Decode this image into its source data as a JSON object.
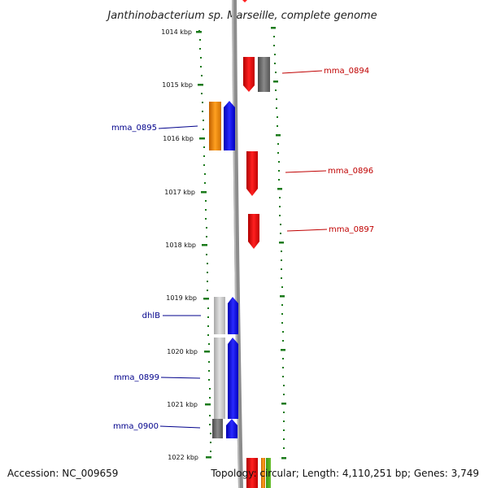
{
  "title": "Janthinobacterium sp. Marseille, complete genome",
  "footer": {
    "accession": "Accession: NC_009659",
    "topology": "Topology: circular; Length: 4,110,251 bp; Genes: 3,749"
  },
  "scale": {
    "unit": "kbp",
    "ticks": [
      "1014 kbp",
      "1015 kbp",
      "1016 kbp",
      "1017 kbp",
      "1018 kbp",
      "1019 kbp",
      "1020 kbp",
      "1021 kbp",
      "1022 kbp"
    ]
  },
  "colors": {
    "forward_label": "#c00000",
    "reverse_label": "#00008b",
    "tick_green": "#1a7a1a",
    "backbone": "#8c8c8c"
  },
  "gene_labels": [
    {
      "name": "mma_0894",
      "strand": "forward"
    },
    {
      "name": "mma_0895",
      "strand": "reverse"
    },
    {
      "name": "mma_0896",
      "strand": "forward"
    },
    {
      "name": "mma_0897",
      "strand": "forward"
    },
    {
      "name": "dhlB",
      "strand": "reverse"
    },
    {
      "name": "mma_0899",
      "strand": "reverse"
    },
    {
      "name": "mma_0900",
      "strand": "reverse"
    }
  ]
}
